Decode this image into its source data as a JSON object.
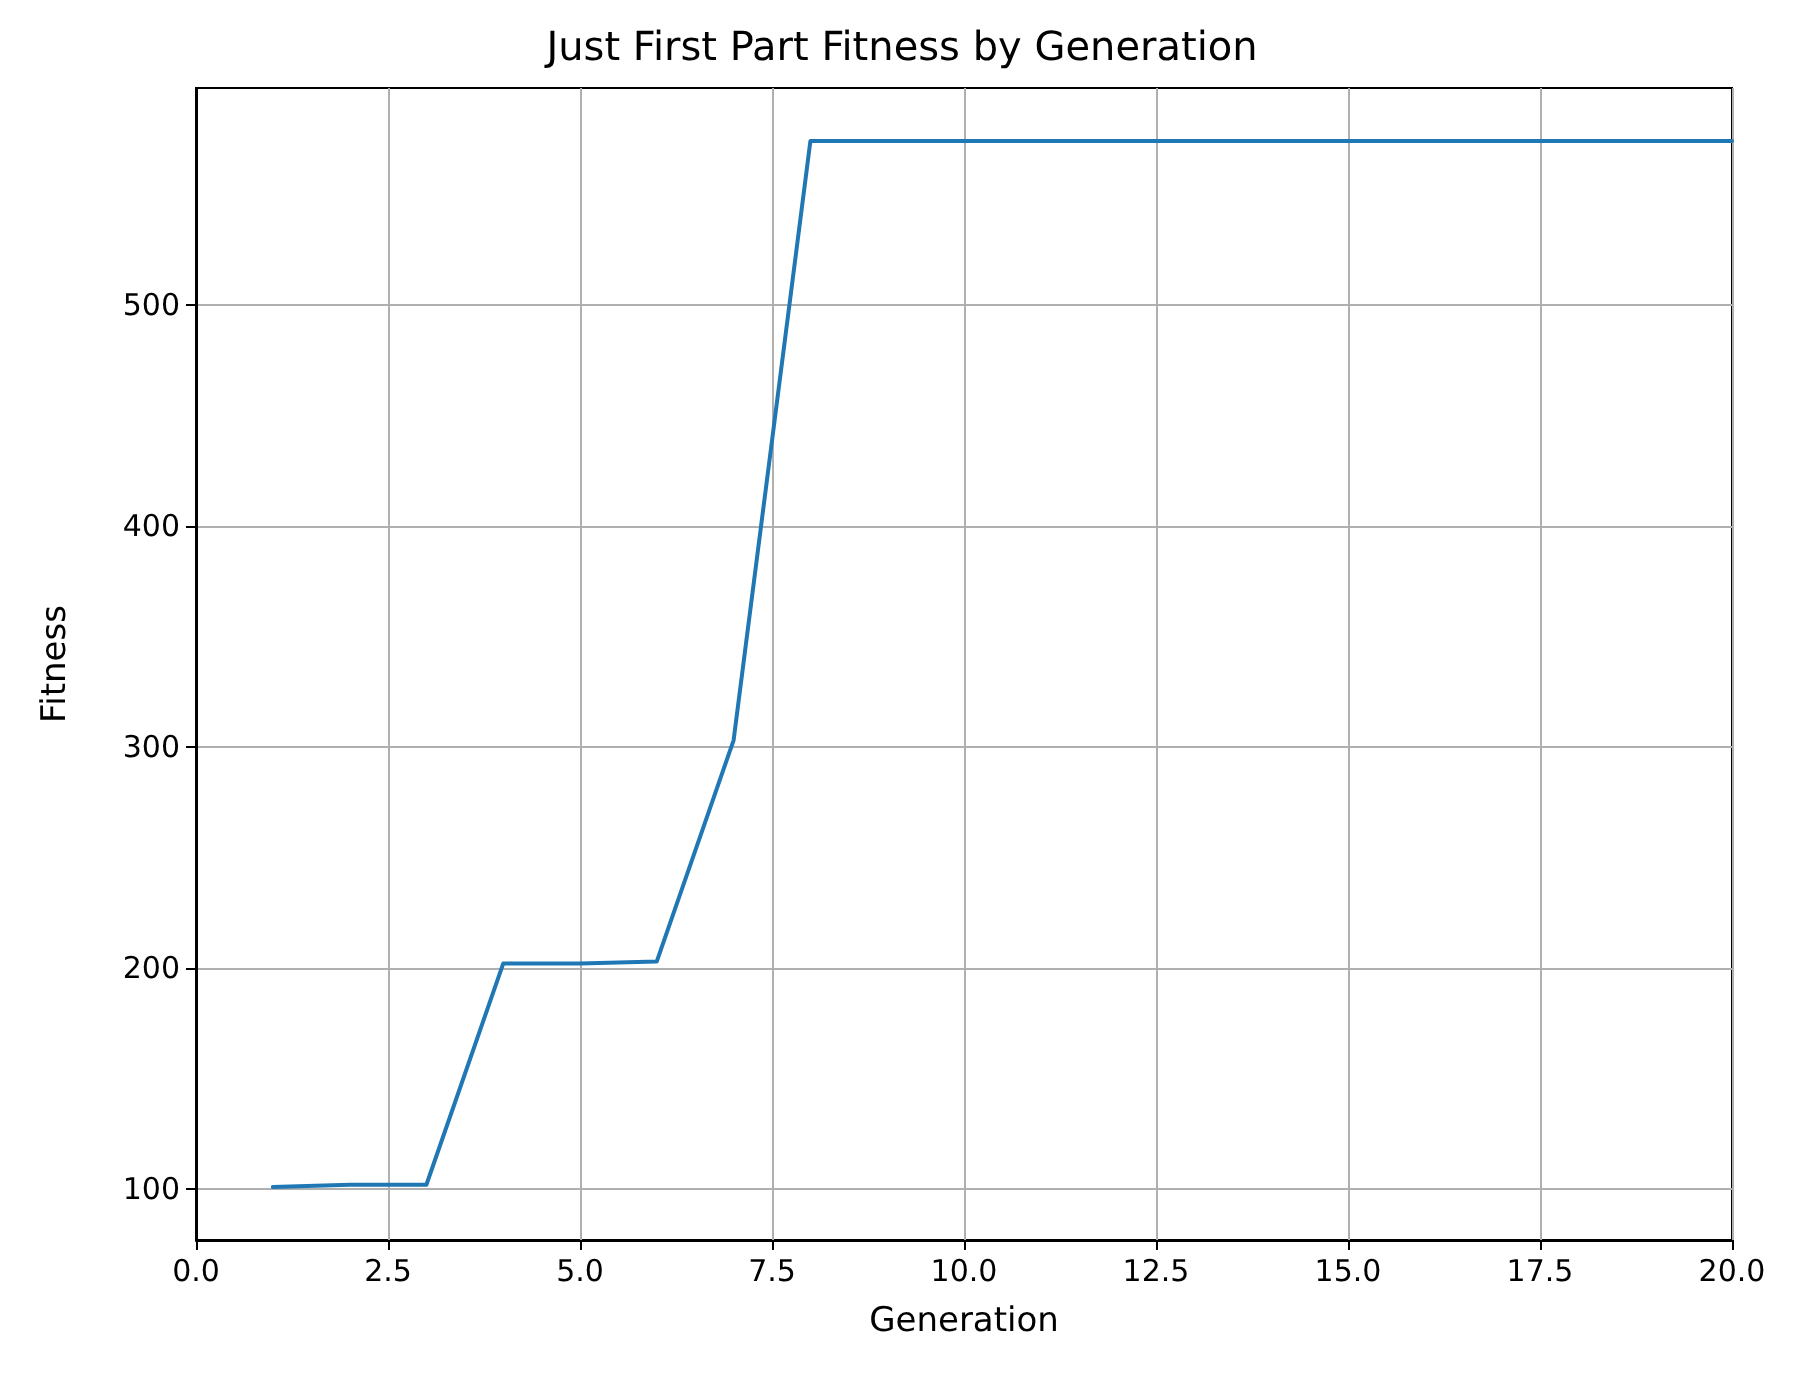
{
  "chart_data": {
    "type": "line",
    "title": "Just First Part Fitness by Generation",
    "xlabel": "Generation",
    "ylabel": "Fitness",
    "x": [
      1,
      2,
      3,
      4,
      5,
      6,
      7,
      8,
      9,
      10,
      11,
      12,
      13,
      14,
      15,
      16,
      17,
      18,
      19,
      20
    ],
    "series": [
      {
        "color": "#1f77b4",
        "values": [
          101,
          102,
          102,
          202,
          202,
          203,
          303,
          574,
          574,
          574,
          574,
          574,
          574,
          574,
          574,
          574,
          574,
          574,
          574,
          574
        ]
      }
    ],
    "xlim": [
      0,
      20
    ],
    "xticks": [
      {
        "value": 0,
        "label": "0.0"
      },
      {
        "value": 2.5,
        "label": "2.5"
      },
      {
        "value": 5,
        "label": "5.0"
      },
      {
        "value": 7.5,
        "label": "7.5"
      },
      {
        "value": 10,
        "label": "10.0"
      },
      {
        "value": 12.5,
        "label": "12.5"
      },
      {
        "value": 15,
        "label": "15.0"
      },
      {
        "value": 17.5,
        "label": "17.5"
      },
      {
        "value": 20,
        "label": "20.0"
      }
    ],
    "ylim": [
      77,
      598
    ],
    "yticks": [
      100,
      200,
      300,
      400,
      500
    ],
    "grid": true,
    "marker": "none",
    "line_style": "solid"
  }
}
